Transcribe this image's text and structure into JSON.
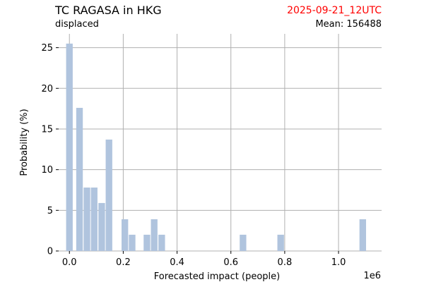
{
  "header": {
    "title": "TC RAGASA in HKG",
    "subtitle": "displaced",
    "date": "2025-09-21_12UTC",
    "mean": "Mean: 156488"
  },
  "colors": {
    "bar": "#b0c4de",
    "date": "#ff0000",
    "grid": "#b0b0b0"
  },
  "chart_data": {
    "type": "bar",
    "title": "TC RAGASA in HKG",
    "xlabel": "Forecasted impact (people)",
    "ylabel": "Probability (%)",
    "x_offset_label": "1e6",
    "xlim": [
      -0.04,
      1.16
    ],
    "ylim": [
      0,
      26.7
    ],
    "x_ticks": [
      0.0,
      0.2,
      0.4,
      0.6,
      0.8,
      1.0
    ],
    "x_tick_labels": [
      "0.0",
      "0.2",
      "0.4",
      "0.6",
      "0.8",
      "1.0"
    ],
    "y_ticks": [
      0,
      5,
      10,
      15,
      20,
      25
    ],
    "y_tick_labels": [
      "0",
      "5",
      "10",
      "15",
      "20",
      "25"
    ],
    "grid": true,
    "bar_width": 0.0245,
    "bins": [
      {
        "x": 0.0,
        "value": 25.5
      },
      {
        "x": 0.0375,
        "value": 17.6
      },
      {
        "x": 0.065,
        "value": 7.8
      },
      {
        "x": 0.092,
        "value": 7.8
      },
      {
        "x": 0.12,
        "value": 5.9
      },
      {
        "x": 0.147,
        "value": 13.7
      },
      {
        "x": 0.206,
        "value": 3.9
      },
      {
        "x": 0.233,
        "value": 2.0
      },
      {
        "x": 0.288,
        "value": 2.0
      },
      {
        "x": 0.315,
        "value": 3.9
      },
      {
        "x": 0.343,
        "value": 2.0
      },
      {
        "x": 0.645,
        "value": 2.0
      },
      {
        "x": 0.785,
        "value": 2.0
      },
      {
        "x": 1.09,
        "value": 3.9
      }
    ]
  }
}
